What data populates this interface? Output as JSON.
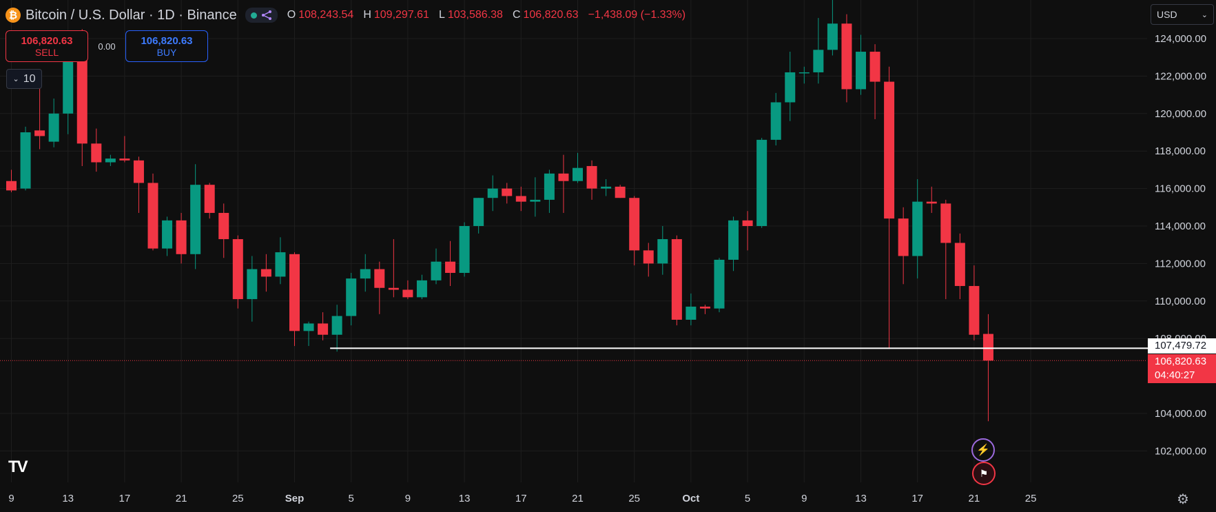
{
  "header": {
    "coin_glyph": "₿",
    "symbol_title": "Bitcoin / U.S. Dollar · 1D · Binance",
    "ohlc": {
      "o_label": "O",
      "o_value": "108,243.54",
      "h_label": "H",
      "h_value": "109,297.61",
      "l_label": "L",
      "l_value": "103,586.38",
      "c_label": "C",
      "c_value": "106,820.63",
      "change": "−1,438.09 (−1.33%)"
    }
  },
  "trade": {
    "sell_price": "106,820.63",
    "sell_label": "SELL",
    "spread": "0.00",
    "buy_price": "106,820.63",
    "buy_label": "BUY"
  },
  "lots_value": "10",
  "currency": "USD",
  "price_labels": {
    "horizontal_line": "107,479.72",
    "last_price": "106,820.63",
    "countdown": "04:40:27"
  },
  "colors": {
    "up": "#089981",
    "down": "#f23645",
    "background": "#0f0f0f"
  },
  "icons": {
    "tv_logo": "tradingview-logo-icon",
    "settings": "gear-icon",
    "events": [
      "lightning-event-icon",
      "us-flag-event-icon"
    ]
  },
  "chart_data": {
    "type": "candlestick",
    "x_tick_labels": [
      "9",
      "13",
      "17",
      "21",
      "25",
      "Sep",
      "5",
      "9",
      "13",
      "17",
      "21",
      "25",
      "Oct",
      "5",
      "9",
      "13",
      "17",
      "21",
      "25"
    ],
    "y_tick_labels": [
      "124,000.00",
      "122,000.00",
      "120,000.00",
      "118,000.00",
      "116,000.00",
      "114,000.00",
      "112,000.00",
      "110,000.00",
      "108,000.00",
      "104,000.00",
      "102,000.00"
    ],
    "y_ticks": [
      124000,
      122000,
      120000,
      118000,
      116000,
      114000,
      112000,
      110000,
      108000,
      104000,
      102000
    ],
    "ylim": [
      100000,
      126000
    ],
    "horizontal_line_value": 107479.72,
    "last_price": 106820.63,
    "candles": [
      {
        "date": "2025-08-09",
        "o": 116400,
        "h": 117000,
        "l": 115800,
        "c": 115900
      },
      {
        "date": "2025-08-10",
        "o": 116000,
        "h": 119300,
        "l": 115900,
        "c": 119000
      },
      {
        "date": "2025-08-11",
        "o": 119100,
        "h": 122300,
        "l": 118100,
        "c": 118800
      },
      {
        "date": "2025-08-12",
        "o": 118500,
        "h": 120800,
        "l": 118200,
        "c": 120000
      },
      {
        "date": "2025-08-13",
        "o": 120000,
        "h": 123700,
        "l": 118900,
        "c": 123400
      },
      {
        "date": "2025-08-14",
        "o": 123400,
        "h": 124500,
        "l": 117200,
        "c": 118400
      },
      {
        "date": "2025-08-15",
        "o": 118400,
        "h": 119200,
        "l": 116900,
        "c": 117400
      },
      {
        "date": "2025-08-16",
        "o": 117400,
        "h": 117800,
        "l": 117200,
        "c": 117600
      },
      {
        "date": "2025-08-17",
        "o": 117600,
        "h": 118800,
        "l": 117400,
        "c": 117500
      },
      {
        "date": "2025-08-18",
        "o": 117500,
        "h": 117700,
        "l": 114700,
        "c": 116300
      },
      {
        "date": "2025-08-19",
        "o": 116300,
        "h": 116800,
        "l": 112700,
        "c": 112800
      },
      {
        "date": "2025-08-20",
        "o": 112800,
        "h": 114500,
        "l": 112400,
        "c": 114300
      },
      {
        "date": "2025-08-21",
        "o": 114300,
        "h": 114700,
        "l": 112000,
        "c": 112500
      },
      {
        "date": "2025-08-22",
        "o": 112500,
        "h": 117300,
        "l": 111700,
        "c": 116200
      },
      {
        "date": "2025-08-23",
        "o": 116200,
        "h": 116300,
        "l": 114400,
        "c": 114700
      },
      {
        "date": "2025-08-24",
        "o": 114700,
        "h": 115200,
        "l": 112300,
        "c": 113300
      },
      {
        "date": "2025-08-25",
        "o": 113300,
        "h": 113500,
        "l": 109600,
        "c": 110100
      },
      {
        "date": "2025-08-26",
        "o": 110100,
        "h": 112400,
        "l": 108900,
        "c": 111700
      },
      {
        "date": "2025-08-27",
        "o": 111700,
        "h": 112500,
        "l": 110500,
        "c": 111300
      },
      {
        "date": "2025-08-28",
        "o": 111300,
        "h": 113400,
        "l": 110900,
        "c": 112600
      },
      {
        "date": "2025-08-29",
        "o": 112500,
        "h": 112600,
        "l": 107600,
        "c": 108400
      },
      {
        "date": "2025-08-30",
        "o": 108400,
        "h": 108900,
        "l": 107600,
        "c": 108800
      },
      {
        "date": "2025-08-31",
        "o": 108800,
        "h": 109400,
        "l": 107900,
        "c": 108200
      },
      {
        "date": "2025-09-01",
        "o": 108200,
        "h": 109800,
        "l": 107300,
        "c": 109200
      },
      {
        "date": "2025-09-02",
        "o": 109200,
        "h": 111500,
        "l": 108700,
        "c": 111200
      },
      {
        "date": "2025-09-03",
        "o": 111200,
        "h": 112500,
        "l": 110500,
        "c": 111700
      },
      {
        "date": "2025-09-04",
        "o": 111700,
        "h": 112100,
        "l": 109300,
        "c": 110700
      },
      {
        "date": "2025-09-05",
        "o": 110700,
        "h": 113300,
        "l": 110200,
        "c": 110600
      },
      {
        "date": "2025-09-06",
        "o": 110600,
        "h": 111100,
        "l": 110100,
        "c": 110200
      },
      {
        "date": "2025-09-07",
        "o": 110200,
        "h": 111400,
        "l": 110100,
        "c": 111100
      },
      {
        "date": "2025-09-08",
        "o": 111100,
        "h": 112800,
        "l": 110900,
        "c": 112100
      },
      {
        "date": "2025-09-09",
        "o": 112100,
        "h": 113200,
        "l": 110800,
        "c": 111500
      },
      {
        "date": "2025-09-10",
        "o": 111500,
        "h": 114200,
        "l": 111300,
        "c": 114000
      },
      {
        "date": "2025-09-11",
        "o": 114000,
        "h": 115500,
        "l": 113600,
        "c": 115500
      },
      {
        "date": "2025-09-12",
        "o": 115500,
        "h": 116700,
        "l": 114800,
        "c": 116000
      },
      {
        "date": "2025-09-13",
        "o": 116000,
        "h": 116300,
        "l": 115200,
        "c": 115600
      },
      {
        "date": "2025-09-14",
        "o": 115600,
        "h": 116100,
        "l": 114800,
        "c": 115300
      },
      {
        "date": "2025-09-15",
        "o": 115300,
        "h": 116600,
        "l": 114500,
        "c": 115400
      },
      {
        "date": "2025-09-16",
        "o": 115400,
        "h": 117000,
        "l": 114700,
        "c": 116800
      },
      {
        "date": "2025-09-17",
        "o": 116800,
        "h": 117800,
        "l": 114700,
        "c": 116400
      },
      {
        "date": "2025-09-18",
        "o": 116400,
        "h": 117900,
        "l": 116300,
        "c": 117100
      },
      {
        "date": "2025-09-19",
        "o": 117200,
        "h": 117500,
        "l": 115400,
        "c": 116000
      },
      {
        "date": "2025-09-20",
        "o": 116000,
        "h": 116500,
        "l": 115600,
        "c": 116100
      },
      {
        "date": "2025-09-21",
        "o": 116100,
        "h": 116200,
        "l": 115500,
        "c": 115500
      },
      {
        "date": "2025-09-22",
        "o": 115500,
        "h": 115600,
        "l": 111900,
        "c": 112700
      },
      {
        "date": "2025-09-23",
        "o": 112700,
        "h": 113100,
        "l": 111300,
        "c": 112000
      },
      {
        "date": "2025-09-24",
        "o": 112000,
        "h": 114000,
        "l": 111400,
        "c": 113300
      },
      {
        "date": "2025-09-25",
        "o": 113300,
        "h": 113500,
        "l": 108700,
        "c": 109000
      },
      {
        "date": "2025-09-26",
        "o": 109000,
        "h": 110400,
        "l": 108700,
        "c": 109700
      },
      {
        "date": "2025-09-27",
        "o": 109700,
        "h": 109800,
        "l": 109300,
        "c": 109600
      },
      {
        "date": "2025-09-28",
        "o": 109600,
        "h": 112300,
        "l": 109400,
        "c": 112200
      },
      {
        "date": "2025-09-29",
        "o": 112200,
        "h": 114500,
        "l": 111600,
        "c": 114300
      },
      {
        "date": "2025-09-30",
        "o": 114300,
        "h": 114800,
        "l": 112700,
        "c": 114000
      },
      {
        "date": "2025-10-01",
        "o": 114000,
        "h": 118700,
        "l": 113900,
        "c": 118600
      },
      {
        "date": "2025-10-02",
        "o": 118600,
        "h": 121100,
        "l": 118300,
        "c": 120600
      },
      {
        "date": "2025-10-03",
        "o": 120600,
        "h": 123300,
        "l": 119600,
        "c": 122200
      },
      {
        "date": "2025-10-04",
        "o": 122200,
        "h": 122500,
        "l": 121600,
        "c": 122200
      },
      {
        "date": "2025-10-05",
        "o": 122200,
        "h": 125100,
        "l": 121600,
        "c": 123400
      },
      {
        "date": "2025-10-06",
        "o": 123400,
        "h": 126200,
        "l": 123100,
        "c": 124800
      },
      {
        "date": "2025-10-07",
        "o": 124800,
        "h": 125300,
        "l": 120600,
        "c": 121300
      },
      {
        "date": "2025-10-08",
        "o": 121300,
        "h": 124200,
        "l": 121000,
        "c": 123300
      },
      {
        "date": "2025-10-09",
        "o": 123300,
        "h": 123700,
        "l": 119700,
        "c": 121700
      },
      {
        "date": "2025-10-10",
        "o": 121700,
        "h": 122500,
        "l": 107500,
        "c": 114400
      },
      {
        "date": "2025-10-11",
        "o": 114400,
        "h": 115000,
        "l": 110900,
        "c": 112400
      },
      {
        "date": "2025-10-12",
        "o": 112400,
        "h": 116500,
        "l": 111200,
        "c": 115300
      },
      {
        "date": "2025-10-13",
        "o": 115300,
        "h": 116100,
        "l": 114700,
        "c": 115200
      },
      {
        "date": "2025-10-14",
        "o": 115200,
        "h": 115400,
        "l": 110100,
        "c": 113100
      },
      {
        "date": "2025-10-15",
        "o": 113100,
        "h": 113600,
        "l": 110100,
        "c": 110800
      },
      {
        "date": "2025-10-16",
        "o": 110800,
        "h": 111900,
        "l": 107900,
        "c": 108200
      },
      {
        "date": "2025-10-17",
        "o": 108243.54,
        "h": 109297.61,
        "l": 103586.38,
        "c": 106820.63
      }
    ]
  }
}
